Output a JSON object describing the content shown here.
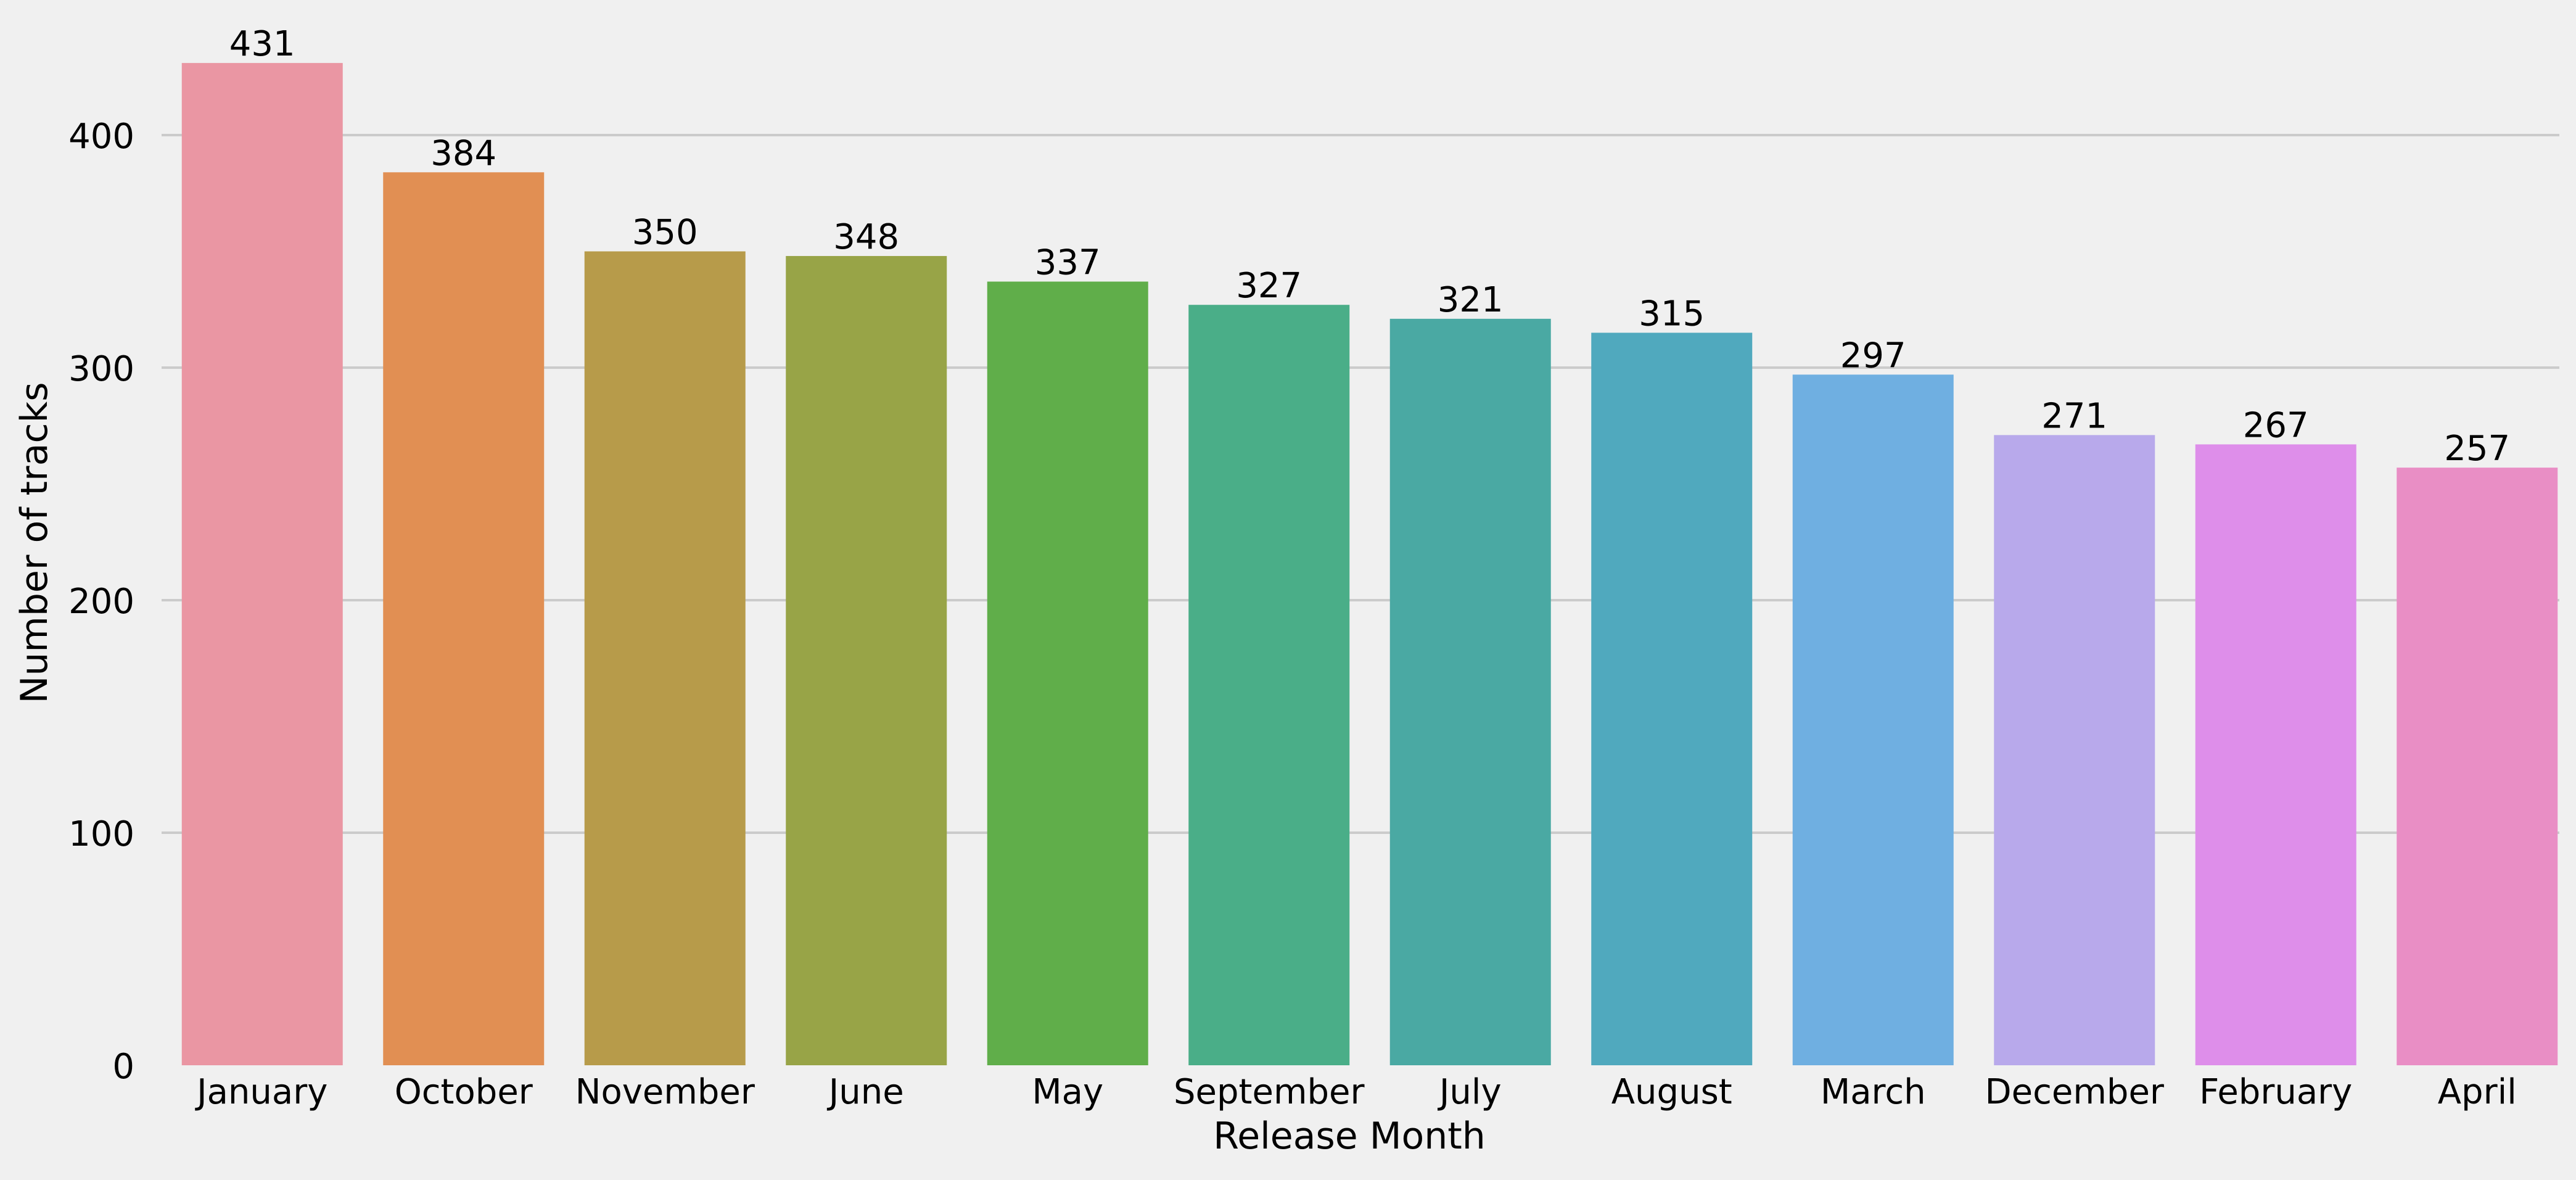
{
  "chart_data": {
    "type": "bar",
    "title": "",
    "xlabel": "Release Month",
    "ylabel": "Number of tracks",
    "categories": [
      "January",
      "October",
      "November",
      "June",
      "May",
      "September",
      "July",
      "August",
      "March",
      "December",
      "February",
      "April"
    ],
    "values": [
      431,
      384,
      350,
      348,
      337,
      327,
      321,
      315,
      297,
      271,
      267,
      257
    ],
    "data_labels": [
      "431",
      "384",
      "350",
      "348",
      "337",
      "327",
      "321",
      "315",
      "297",
      "271",
      "267",
      "257"
    ],
    "colors": [
      "#ea96a3",
      "#e18f53",
      "#b79b4a",
      "#98a447",
      "#60ae4a",
      "#4aae88",
      "#4aa9a3",
      "#50a9be",
      "#6fafe1",
      "#b8a9eb",
      "#de8eea",
      "#e98ec5"
    ],
    "ylim": [
      0,
      431
    ],
    "yticks": [
      0,
      100,
      200,
      300,
      400
    ],
    "ytick_labels": [
      "0",
      "100",
      "200",
      "300",
      "400"
    ],
    "grid": "horizontal",
    "background": "#f0f0f0",
    "grid_color": "#cbcbcb"
  }
}
